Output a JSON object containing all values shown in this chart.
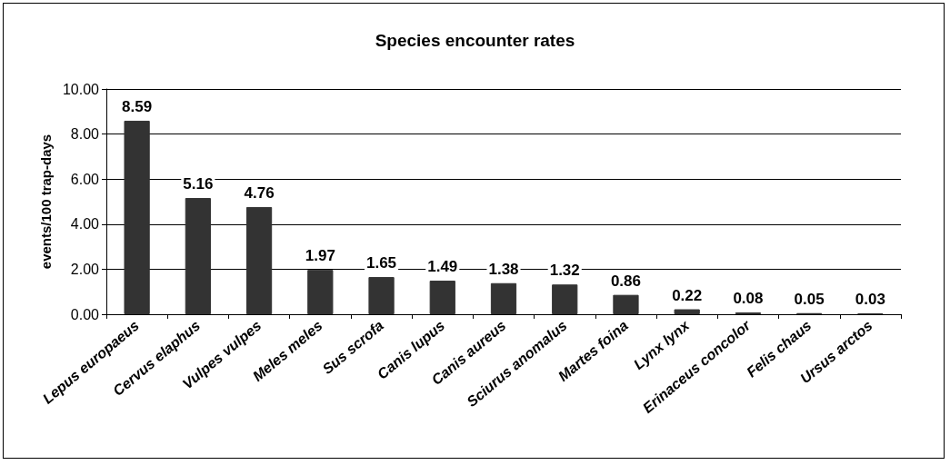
{
  "chart_data": {
    "type": "bar",
    "title": "Species encounter rates",
    "ylabel": "events/100 trap-days",
    "categories": [
      "Lepus europaeus",
      "Cervus elaphus",
      "Vulpes vulpes",
      "Meles meles",
      "Sus scrofa",
      "Canis lupus",
      "Canis aureus",
      "Sciurus anomalus",
      "Martes foina",
      "Lynx lynx",
      "Erinaceus concolor",
      "Felis chaus",
      "Ursus arctos"
    ],
    "values": [
      8.59,
      5.16,
      4.76,
      1.97,
      1.65,
      1.49,
      1.38,
      1.32,
      0.86,
      0.22,
      0.08,
      0.05,
      0.03
    ],
    "color": "#333333",
    "ylim": [
      0,
      10
    ],
    "yticks": [
      {
        "value": 0,
        "label": "0.00"
      },
      {
        "value": 2,
        "label": "2.00"
      },
      {
        "value": 4,
        "label": "4.00"
      },
      {
        "value": 6,
        "label": "6.00"
      },
      {
        "value": 8,
        "label": "8.00"
      },
      {
        "value": 10,
        "label": "10.00"
      }
    ],
    "grid": "y",
    "data_labels": true
  }
}
